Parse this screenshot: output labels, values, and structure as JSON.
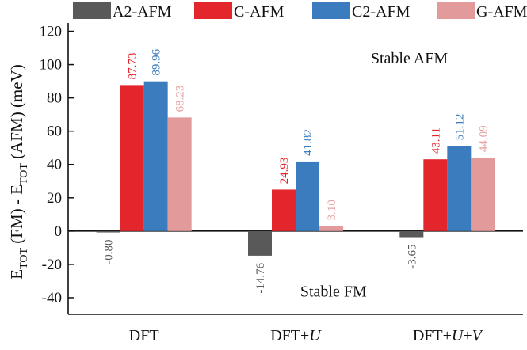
{
  "chart_data": {
    "type": "bar",
    "title": "",
    "xlabel": "",
    "ylabel": {
      "main": "E",
      "sub1": "TOT",
      "mid": " (FM) - E",
      "sub2": "TOT",
      "end": " (AFM) (meV)"
    },
    "ylim": [
      -50,
      125
    ],
    "yticks": [
      -40,
      -20,
      0,
      20,
      40,
      60,
      80,
      100,
      120
    ],
    "ytick_labels": [
      "-40",
      "-20",
      "0",
      "20",
      "40",
      "60",
      "80",
      "100",
      "120"
    ],
    "grid": false,
    "legend_position": "top",
    "categories": [
      {
        "base": "DFT",
        "parts": []
      },
      {
        "base": "DFT+",
        "parts": [
          "U"
        ]
      },
      {
        "base": "DFT+",
        "parts": [
          "U",
          "+",
          "V"
        ]
      }
    ],
    "series": [
      {
        "name": "A2-AFM",
        "color": "#595959",
        "label_color": "#595959",
        "values": [
          -0.8,
          -14.76,
          -3.65
        ],
        "labels": [
          "-0.80",
          "-14.76",
          "-3.65"
        ]
      },
      {
        "name": "C-AFM",
        "color": "#e3262b",
        "label_color": "#e3262b",
        "values": [
          87.73,
          24.93,
          43.11
        ],
        "labels": [
          "87.73",
          "24.93",
          "43.11"
        ]
      },
      {
        "name": "C2-AFM",
        "color": "#3a7cbd",
        "label_color": "#3a7cbd",
        "values": [
          89.96,
          41.82,
          51.12
        ],
        "labels": [
          "89.96",
          "41.82",
          "51.12"
        ]
      },
      {
        "name": "G-AFM",
        "color": "#e29a9b",
        "label_color": "#e6a2a3",
        "values": [
          68.23,
          3.1,
          44.09
        ],
        "labels": [
          "68.23",
          "3.10",
          "44.09"
        ]
      }
    ],
    "annotations": [
      {
        "text": "Stable AFM",
        "x": 1.75,
        "y": 104
      },
      {
        "text": "Stable FM",
        "x": 1.25,
        "y": -36
      }
    ]
  }
}
